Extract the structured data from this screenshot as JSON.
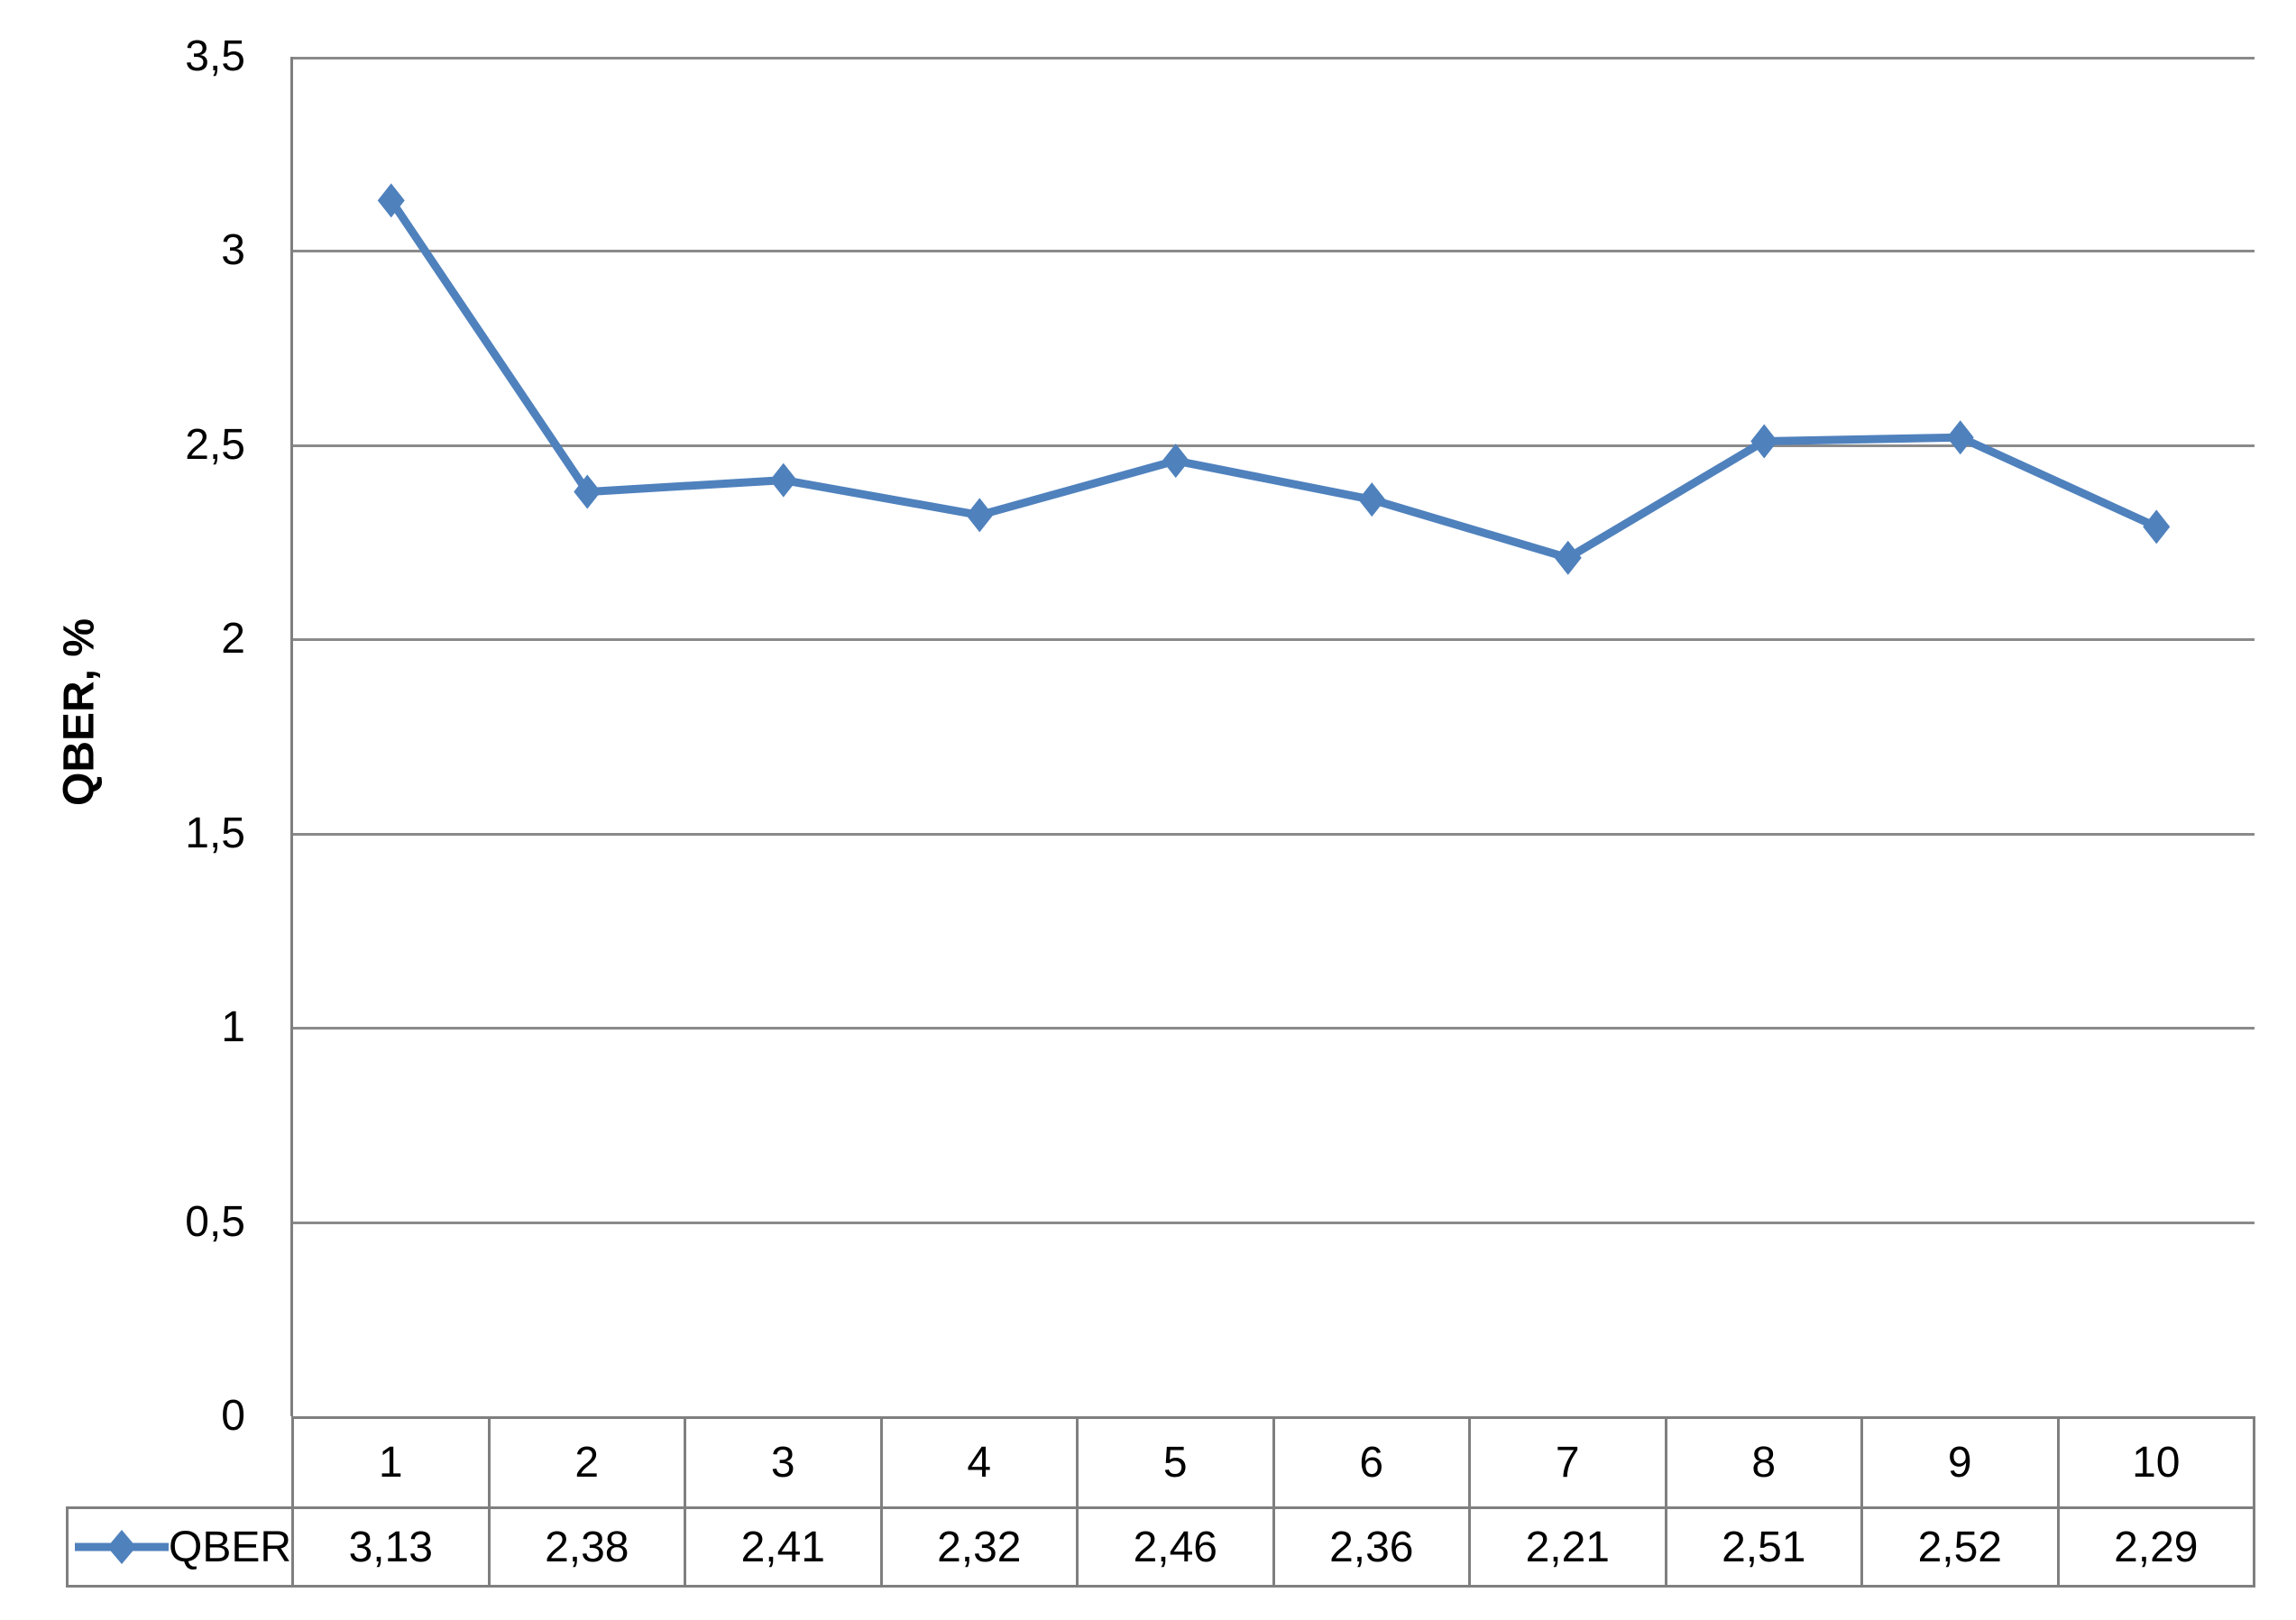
{
  "chart_data": {
    "type": "line",
    "title": "",
    "categories": [
      "1",
      "2",
      "3",
      "4",
      "5",
      "6",
      "7",
      "8",
      "9",
      "10"
    ],
    "series": [
      {
        "name": "QBER",
        "values": [
          3.13,
          2.38,
          2.41,
          2.32,
          2.46,
          2.36,
          2.21,
          2.51,
          2.52,
          2.29
        ],
        "display_values": [
          "3,13",
          "2,38",
          "2,41",
          "2,32",
          "2,46",
          "2,36",
          "2,21",
          "2,51",
          "2,52",
          "2,29"
        ]
      }
    ],
    "xlabel": "",
    "ylabel": "QBER, %",
    "ylim": [
      0,
      3.5
    ],
    "ytick_step": 0.5,
    "ytick_labels": [
      "3,5",
      "3",
      "2,5",
      "2",
      "1,5",
      "1",
      "0,5",
      "0"
    ],
    "grid": true,
    "legend_position": "data-table-left-cell",
    "marker": "diamond"
  },
  "colors": {
    "series": "#4F81BD",
    "gridline": "#8A8A8A",
    "table_border": "#7F7F7F",
    "text": "#000000"
  }
}
